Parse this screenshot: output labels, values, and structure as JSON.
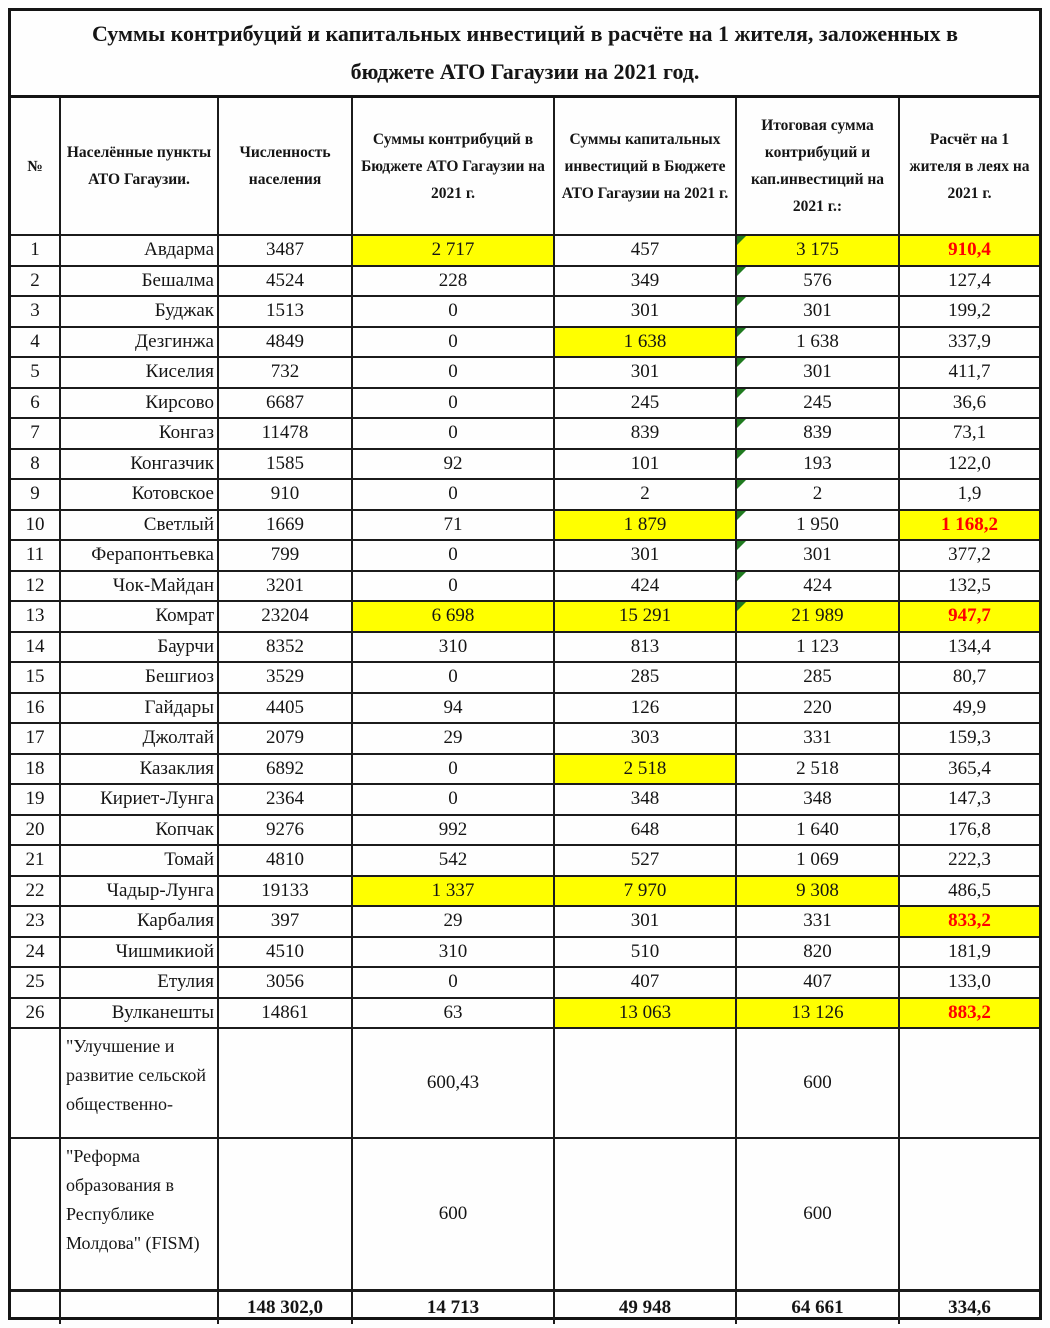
{
  "title": "Суммы контрибуций и капитальных инвестиций в расчёте на 1 жителя, заложенных в бюджете АТО Гагаузии на 2021 год.",
  "columns": [
    "№",
    "Населённые пункты АТО Гагаузии.",
    "Численность населения",
    "Суммы контрибуций в Бюджете АТО Гагаузии на 2021 г.",
    "Суммы капитальных инвестиций в Бюджете АТО Гагаузии на 2021 г.",
    "Итоговая сумма контрибуций и кап.инвестиций на 2021 г.:",
    "Расчёт на 1 жителя в леях на 2021 г."
  ],
  "rows": [
    {
      "n": "1",
      "name": "Авдарма",
      "pop": "3487",
      "contrib": "2 717",
      "invest": "457",
      "total": "3 175",
      "per": "910,4",
      "hl_contrib": true,
      "hl_invest": false,
      "hl_total": true,
      "hl_per": true,
      "red_per": true,
      "marker": true
    },
    {
      "n": "2",
      "name": "Бешалма",
      "pop": "4524",
      "contrib": "228",
      "invest": "349",
      "total": "576",
      "per": "127,4",
      "hl_contrib": false,
      "hl_invest": false,
      "hl_total": false,
      "hl_per": false,
      "red_per": false,
      "marker": true
    },
    {
      "n": "3",
      "name": "Буджак",
      "pop": "1513",
      "contrib": "0",
      "invest": "301",
      "total": "301",
      "per": "199,2",
      "hl_contrib": false,
      "hl_invest": false,
      "hl_total": false,
      "hl_per": false,
      "red_per": false,
      "marker": true
    },
    {
      "n": "4",
      "name": "Дезгинжа",
      "pop": "4849",
      "contrib": "0",
      "invest": "1 638",
      "total": "1 638",
      "per": "337,9",
      "hl_contrib": false,
      "hl_invest": true,
      "hl_total": false,
      "hl_per": false,
      "red_per": false,
      "marker": true
    },
    {
      "n": "5",
      "name": "Киселия",
      "pop": "732",
      "contrib": "0",
      "invest": "301",
      "total": "301",
      "per": "411,7",
      "hl_contrib": false,
      "hl_invest": false,
      "hl_total": false,
      "hl_per": false,
      "red_per": false,
      "marker": true
    },
    {
      "n": "6",
      "name": "Кирсово",
      "pop": "6687",
      "contrib": "0",
      "invest": "245",
      "total": "245",
      "per": "36,6",
      "hl_contrib": false,
      "hl_invest": false,
      "hl_total": false,
      "hl_per": false,
      "red_per": false,
      "marker": true
    },
    {
      "n": "7",
      "name": "Конгаз",
      "pop": "11478",
      "contrib": "0",
      "invest": "839",
      "total": "839",
      "per": "73,1",
      "hl_contrib": false,
      "hl_invest": false,
      "hl_total": false,
      "hl_per": false,
      "red_per": false,
      "marker": true
    },
    {
      "n": "8",
      "name": "Конгазчик",
      "pop": "1585",
      "contrib": "92",
      "invest": "101",
      "total": "193",
      "per": "122,0",
      "hl_contrib": false,
      "hl_invest": false,
      "hl_total": false,
      "hl_per": false,
      "red_per": false,
      "marker": true
    },
    {
      "n": "9",
      "name": "Котовское",
      "pop": "910",
      "contrib": "0",
      "invest": "2",
      "total": "2",
      "per": "1,9",
      "hl_contrib": false,
      "hl_invest": false,
      "hl_total": false,
      "hl_per": false,
      "red_per": false,
      "marker": true
    },
    {
      "n": "10",
      "name": "Светлый",
      "pop": "1669",
      "contrib": "71",
      "invest": "1 879",
      "total": "1 950",
      "per": "1 168,2",
      "hl_contrib": false,
      "hl_invest": true,
      "hl_total": false,
      "hl_per": true,
      "red_per": true,
      "marker": true
    },
    {
      "n": "11",
      "name": "Ферапонтьевка",
      "pop": "799",
      "contrib": "0",
      "invest": "301",
      "total": "301",
      "per": "377,2",
      "hl_contrib": false,
      "hl_invest": false,
      "hl_total": false,
      "hl_per": false,
      "red_per": false,
      "marker": true
    },
    {
      "n": "12",
      "name": "Чок-Майдан",
      "pop": "3201",
      "contrib": "0",
      "invest": "424",
      "total": "424",
      "per": "132,5",
      "hl_contrib": false,
      "hl_invest": false,
      "hl_total": false,
      "hl_per": false,
      "red_per": false,
      "marker": true
    },
    {
      "n": "13",
      "name": "Комрат",
      "pop": "23204",
      "contrib": "6 698",
      "invest": "15 291",
      "total": "21 989",
      "per": "947,7",
      "hl_contrib": true,
      "hl_invest": true,
      "hl_total": true,
      "hl_per": true,
      "red_per": true,
      "marker": true
    },
    {
      "n": "14",
      "name": "Баурчи",
      "pop": "8352",
      "contrib": "310",
      "invest": "813",
      "total": "1 123",
      "per": "134,4",
      "hl_contrib": false,
      "hl_invest": false,
      "hl_total": false,
      "hl_per": false,
      "red_per": false,
      "marker": false
    },
    {
      "n": "15",
      "name": "Бешгиоз",
      "pop": "3529",
      "contrib": "0",
      "invest": "285",
      "total": "285",
      "per": "80,7",
      "hl_contrib": false,
      "hl_invest": false,
      "hl_total": false,
      "hl_per": false,
      "red_per": false,
      "marker": false
    },
    {
      "n": "16",
      "name": "Гайдары",
      "pop": "4405",
      "contrib": "94",
      "invest": "126",
      "total": "220",
      "per": "49,9",
      "hl_contrib": false,
      "hl_invest": false,
      "hl_total": false,
      "hl_per": false,
      "red_per": false,
      "marker": false
    },
    {
      "n": "17",
      "name": "Джолтай",
      "pop": "2079",
      "contrib": "29",
      "invest": "303",
      "total": "331",
      "per": "159,3",
      "hl_contrib": false,
      "hl_invest": false,
      "hl_total": false,
      "hl_per": false,
      "red_per": false,
      "marker": false
    },
    {
      "n": "18",
      "name": "Казаклия",
      "pop": "6892",
      "contrib": "0",
      "invest": "2 518",
      "total": "2 518",
      "per": "365,4",
      "hl_contrib": false,
      "hl_invest": true,
      "hl_total": false,
      "hl_per": false,
      "red_per": false,
      "marker": false
    },
    {
      "n": "19",
      "name": "Кириет-Лунга",
      "pop": "2364",
      "contrib": "0",
      "invest": "348",
      "total": "348",
      "per": "147,3",
      "hl_contrib": false,
      "hl_invest": false,
      "hl_total": false,
      "hl_per": false,
      "red_per": false,
      "marker": false
    },
    {
      "n": "20",
      "name": "Копчак",
      "pop": "9276",
      "contrib": "992",
      "invest": "648",
      "total": "1 640",
      "per": "176,8",
      "hl_contrib": false,
      "hl_invest": false,
      "hl_total": false,
      "hl_per": false,
      "red_per": false,
      "marker": false
    },
    {
      "n": "21",
      "name": "Томай",
      "pop": "4810",
      "contrib": "542",
      "invest": "527",
      "total": "1 069",
      "per": "222,3",
      "hl_contrib": false,
      "hl_invest": false,
      "hl_total": false,
      "hl_per": false,
      "red_per": false,
      "marker": false
    },
    {
      "n": "22",
      "name": "Чадыр-Лунга",
      "pop": "19133",
      "contrib": "1 337",
      "invest": "7 970",
      "total": "9 308",
      "per": "486,5",
      "hl_contrib": true,
      "hl_invest": true,
      "hl_total": true,
      "hl_per": false,
      "red_per": false,
      "marker": false
    },
    {
      "n": "23",
      "name": "Карбалия",
      "pop": "397",
      "contrib": "29",
      "invest": "301",
      "total": "331",
      "per": "833,2",
      "hl_contrib": false,
      "hl_invest": false,
      "hl_total": false,
      "hl_per": true,
      "red_per": true,
      "marker": false
    },
    {
      "n": "24",
      "name": "Чишмикиой",
      "pop": "4510",
      "contrib": "310",
      "invest": "510",
      "total": "820",
      "per": "181,9",
      "hl_contrib": false,
      "hl_invest": false,
      "hl_total": false,
      "hl_per": false,
      "red_per": false,
      "marker": false
    },
    {
      "n": "25",
      "name": "Етулия",
      "pop": "3056",
      "contrib": "0",
      "invest": "407",
      "total": "407",
      "per": "133,0",
      "hl_contrib": false,
      "hl_invest": false,
      "hl_total": false,
      "hl_per": false,
      "red_per": false,
      "marker": false
    },
    {
      "n": "26",
      "name": "Вулканешты",
      "pop": "14861",
      "contrib": "63",
      "invest": "13 063",
      "total": "13 126",
      "per": "883,2",
      "hl_contrib": false,
      "hl_invest": true,
      "hl_total": true,
      "hl_per": true,
      "red_per": true,
      "marker": false
    }
  ],
  "program_rows": [
    {
      "name": "\"Улучшение и развитие сельской общественно-",
      "contrib": "600,43",
      "total": "600"
    },
    {
      "name": "\"Реформа образования в Республике Молдова\" (FISM)",
      "contrib": "600",
      "total": "600"
    }
  ],
  "totals": {
    "pop": "148 302,0",
    "contrib": "14 713",
    "invest": "49 948",
    "total": "64 661",
    "per": "334,6"
  },
  "colors": {
    "highlight": "#FFFF00",
    "red_text": "#FF0000",
    "marker_green": "#1F7A1F",
    "border": "#1B1B1B"
  }
}
